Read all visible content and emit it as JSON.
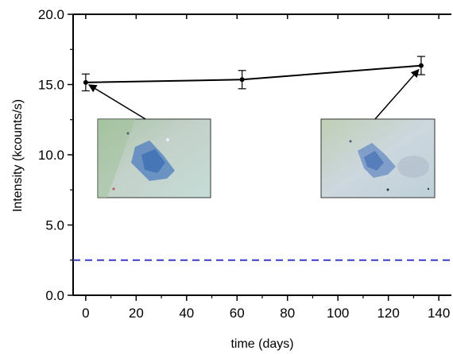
{
  "chart_data": {
    "type": "line",
    "title": "",
    "xlabel": "time (days)",
    "ylabel": "Intensity (kcounts/s)",
    "xlim": [
      -5,
      145
    ],
    "ylim": [
      0,
      20
    ],
    "xticks": [
      0,
      20,
      40,
      60,
      80,
      100,
      120,
      140
    ],
    "xtick_labels": [
      "0",
      "20",
      "40",
      "60",
      "80",
      "100",
      "120",
      "140"
    ],
    "yticks": [
      0,
      5,
      10,
      15,
      20
    ],
    "ytick_labels": [
      "0.0",
      "5.0",
      "10.0",
      "15.0",
      "20.0"
    ],
    "grid": false,
    "series": [
      {
        "x": [
          0,
          62,
          133
        ],
        "y": [
          15.15,
          15.35,
          16.35
        ],
        "error": [
          0.6,
          0.65,
          0.65
        ],
        "color": "#000000",
        "marker": "circle"
      }
    ],
    "reference_line": {
      "y": 2.5,
      "style": "dashed",
      "color": "#3a3ac8"
    },
    "insets": [
      {
        "name": "micrograph-day-0",
        "points_to": {
          "x": 0,
          "y": 15.15
        }
      },
      {
        "name": "micrograph-day-133",
        "points_to": {
          "x": 133,
          "y": 16.35
        }
      }
    ]
  }
}
